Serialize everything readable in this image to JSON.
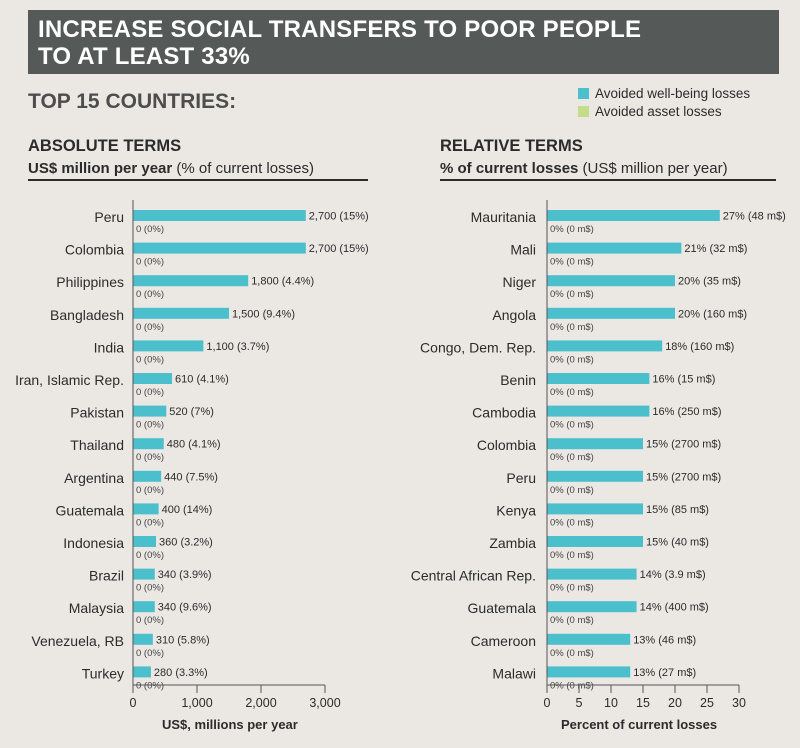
{
  "banner": {
    "line1": "INCREASE SOCIAL TRANSFERS TO POOR PEOPLE",
    "line2": "TO AT LEAST 33%"
  },
  "subtitle": "TOP 15 COUNTRIES:",
  "legend": [
    {
      "label": "Avoided well-being losses",
      "color": "#4cbfcc"
    },
    {
      "label": "Avoided asset losses",
      "color": "#c5dc8a"
    }
  ],
  "colors": {
    "wellbeing": "#4cbfcc",
    "asset": "#c5dc8a",
    "axis": "#555555"
  },
  "left_panel": {
    "title": "ABSOLUTE TERMS",
    "units_bold": "US$ million per year",
    "units_rest": " (% of current losses)"
  },
  "right_panel": {
    "title": "RELATIVE TERMS",
    "units_bold": "% of current losses",
    "units_rest": " (US$ million per year)"
  },
  "chart_data": [
    {
      "type": "bar",
      "orientation": "horizontal",
      "title": "ABSOLUTE TERMS",
      "xlabel": "US$, millions per year",
      "xlim": [
        0,
        3000
      ],
      "xticks": [
        "0",
        "1,000",
        "2,000",
        "3,000"
      ],
      "xtick_values": [
        0,
        1000,
        2000,
        3000
      ],
      "categories": [
        "Peru",
        "Colombia",
        "Philippines",
        "Bangladesh",
        "India",
        "Iran, Islamic Rep.",
        "Pakistan",
        "Thailand",
        "Argentina",
        "Guatemala",
        "Indonesia",
        "Brazil",
        "Malaysia",
        "Venezuela, RB",
        "Turkey"
      ],
      "series": [
        {
          "name": "Avoided well-being losses",
          "values": [
            2700,
            2700,
            1800,
            1500,
            1100,
            610,
            520,
            480,
            440,
            400,
            360,
            340,
            340,
            310,
            280
          ],
          "labels": [
            "2,700 (15%)",
            "2,700 (15%)",
            "1,800 (4.4%)",
            "1,500 (9.4%)",
            "1,100 (3.7%)",
            "610 (4.1%)",
            "520 (7%)",
            "480 (4.1%)",
            "440 (7.5%)",
            "400 (14%)",
            "360 (3.2%)",
            "340 (3.9%)",
            "340 (9.6%)",
            "310 (5.8%)",
            "280 (3.3%)"
          ]
        },
        {
          "name": "Avoided asset losses",
          "values": [
            0,
            0,
            0,
            0,
            0,
            0,
            0,
            0,
            0,
            0,
            0,
            0,
            0,
            0,
            0
          ],
          "labels": [
            "0 (0%)",
            "0 (0%)",
            "0 (0%)",
            "0 (0%)",
            "0 (0%)",
            "0 (0%)",
            "0 (0%)",
            "0 (0%)",
            "0 (0%)",
            "0 (0%)",
            "0 (0%)",
            "0 (0%)",
            "0 (0%)",
            "0 (0%)",
            "0 (0%)"
          ]
        }
      ]
    },
    {
      "type": "bar",
      "orientation": "horizontal",
      "title": "RELATIVE TERMS",
      "xlabel": "Percent of current losses",
      "xlim": [
        0,
        30
      ],
      "xticks": [
        "0",
        "5",
        "10",
        "15",
        "20",
        "25",
        "30"
      ],
      "xtick_values": [
        0,
        5,
        10,
        15,
        20,
        25,
        30
      ],
      "categories": [
        "Mauritania",
        "Mali",
        "Niger",
        "Angola",
        "Congo, Dem. Rep.",
        "Benin",
        "Cambodia",
        "Colombia",
        "Peru",
        "Kenya",
        "Zambia",
        "Central African Rep.",
        "Guatemala",
        "Cameroon",
        "Malawi"
      ],
      "series": [
        {
          "name": "Avoided well-being losses",
          "values": [
            27,
            21,
            20,
            20,
            18,
            16,
            16,
            15,
            15,
            15,
            15,
            14,
            14,
            13,
            13
          ],
          "labels": [
            "27% (48 m$)",
            "21% (32 m$)",
            "20% (35 m$)",
            "20% (160 m$)",
            "18% (160 m$)",
            "16% (15 m$)",
            "16% (250 m$)",
            "15% (2700 m$)",
            "15% (2700 m$)",
            "15% (85 m$)",
            "15% (40 m$)",
            "14% (3.9 m$)",
            "14% (400 m$)",
            "13% (46 m$)",
            "13% (27 m$)"
          ]
        },
        {
          "name": "Avoided asset losses",
          "values": [
            0,
            0,
            0,
            0,
            0,
            0,
            0,
            0,
            0,
            0,
            0,
            0,
            0,
            0,
            0
          ],
          "labels": [
            "0% (0 m$)",
            "0% (0 m$)",
            "0% (0 m$)",
            "0% (0 m$)",
            "0% (0 m$)",
            "0% (0 m$)",
            "0% (0 m$)",
            "0% (0 m$)",
            "0% (0 m$)",
            "0% (0 m$)",
            "0% (0 m$)",
            "0% (0 m$)",
            "0% (0 m$)",
            "0% (0 m$)",
            "0% (0 m$)"
          ]
        }
      ]
    }
  ]
}
